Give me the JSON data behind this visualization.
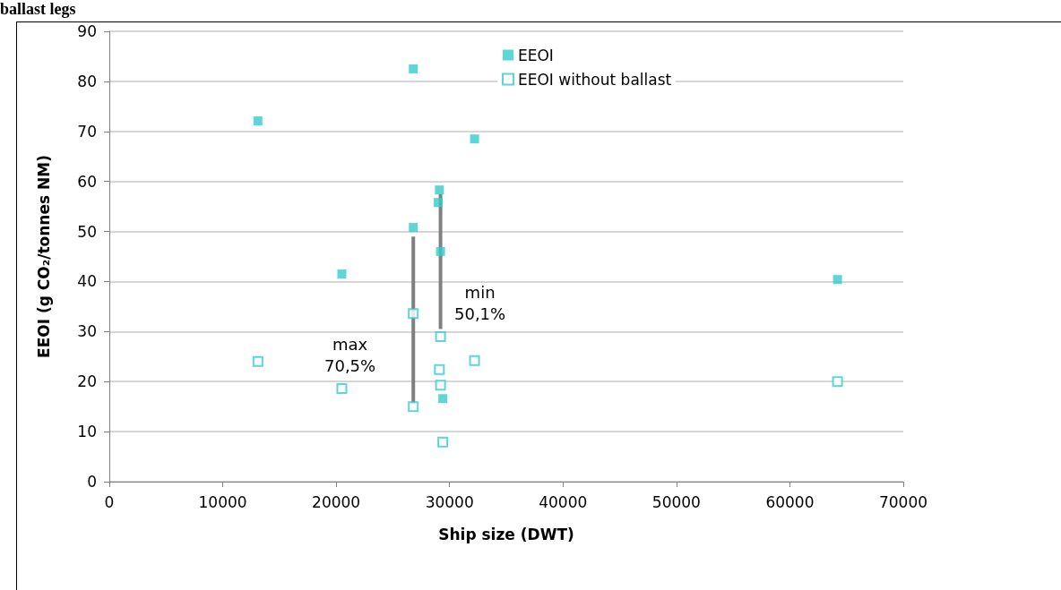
{
  "chart_data": {
    "type": "scatter",
    "title": "ballast legs",
    "xlabel": "Ship size (DWT)",
    "ylabel": "EEOI (g CO₂/tonnes NM)",
    "xlim": [
      0,
      70000
    ],
    "xticks": [
      0,
      10000,
      20000,
      30000,
      40000,
      50000,
      60000,
      70000
    ],
    "ylim": [
      0,
      90
    ],
    "yticks": [
      0,
      10,
      20,
      30,
      40,
      50,
      60,
      70,
      80,
      90
    ],
    "grid": "y",
    "legend": "top right",
    "marker": "square",
    "series": [
      {
        "name": "EEOI",
        "color": "#33cccc",
        "x": [
          13100,
          20500,
          26800,
          26800,
          29100,
          29000,
          29200,
          29400,
          32200,
          64200
        ],
        "values": [
          72.1,
          41.5,
          82.5,
          50.8,
          58.3,
          55.8,
          46.0,
          16.6,
          68.5,
          40.4
        ]
      },
      {
        "name": "EEOI without ballast",
        "color": "#33cccc",
        "x": [
          13100,
          20500,
          26800,
          26800,
          29200,
          29100,
          29200,
          29400,
          32200,
          64200
        ],
        "values": [
          24.0,
          18.6,
          33.6,
          15.0,
          29.0,
          22.4,
          19.3,
          7.9,
          24.2,
          20.0
        ]
      },
      {
        "type": "line",
        "color": "#808080",
        "marker": "none",
        "x": [
          26800,
          26800
        ],
        "values": [
          49,
          15.6
        ]
      },
      {
        "type": "line",
        "color": "#808080",
        "marker": "none",
        "x": [
          29200,
          29200
        ],
        "values": [
          57.5,
          30.5
        ]
      }
    ],
    "annotations": [
      "max\n70,5%",
      "min\n50,1%"
    ]
  }
}
